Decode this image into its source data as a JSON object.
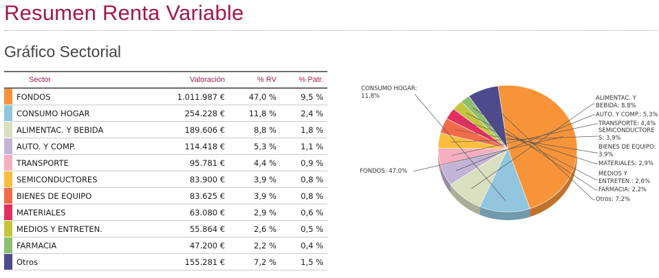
{
  "page": {
    "title": "Resumen Renta Variable",
    "section_title": "Gráfico Sectorial"
  },
  "table": {
    "headers": {
      "sector": "Sector",
      "valoracion": "Valoración",
      "pct_rv": "% RV",
      "pct_patr": "% Patr."
    },
    "rows": [
      {
        "sector": "FONDOS",
        "valoracion": "1.011.987 €",
        "pct_rv": "47,0 %",
        "pct_patr": "9,5 %",
        "color": "#f7943a"
      },
      {
        "sector": "CONSUMO HOGAR",
        "valoracion": "254.228 €",
        "pct_rv": "11,8 %",
        "pct_patr": "2,4 %",
        "color": "#92c5de"
      },
      {
        "sector": "ALIMENTAC. Y BEBIDA",
        "valoracion": "189.606 €",
        "pct_rv": "8,8 %",
        "pct_patr": "1,8 %",
        "color": "#dadfc0"
      },
      {
        "sector": "AUTO. Y COMP.",
        "valoracion": "114.418 €",
        "pct_rv": "5,3 %",
        "pct_patr": "1,1 %",
        "color": "#c2b4d6"
      },
      {
        "sector": "TRANSPORTE",
        "valoracion": "95.781 €",
        "pct_rv": "4,4 %",
        "pct_patr": "0,9 %",
        "color": "#f4afc0"
      },
      {
        "sector": "SEMICONDUCTORES",
        "valoracion": "83.900 €",
        "pct_rv": "3,9 %",
        "pct_patr": "0,8 %",
        "color": "#f9be3e"
      },
      {
        "sector": "BIENES DE EQUIPO",
        "valoracion": "83.625 €",
        "pct_rv": "3,9 %",
        "pct_patr": "0,8 %",
        "color": "#f26b4b"
      },
      {
        "sector": "MATERIALES",
        "valoracion": "63.080 €",
        "pct_rv": "2,9 %",
        "pct_patr": "0,6 %",
        "color": "#e2305e"
      },
      {
        "sector": "MEDIOS Y ENTRETEN.",
        "valoracion": "55.864 €",
        "pct_rv": "2,6 %",
        "pct_patr": "0,5 %",
        "color": "#c4c43e"
      },
      {
        "sector": "FARMACIA",
        "valoracion": "47.200 €",
        "pct_rv": "2,2 %",
        "pct_patr": "0,4 %",
        "color": "#8dbf72"
      },
      {
        "sector": "Otros",
        "valoracion": "155.281 €",
        "pct_rv": "7,2 %",
        "pct_patr": "1,5 %",
        "color": "#4d4a8e"
      }
    ]
  },
  "chart_data": {
    "type": "pie",
    "title": "",
    "categories": [
      "FONDOS",
      "CONSUMO HOGAR",
      "ALIMENTAC. Y BEBIDA",
      "AUTO. Y COMP.",
      "TRANSPORTE",
      "SEMICONDUCTORES",
      "BIENES DE EQUIPO",
      "MATERIALES",
      "MEDIOS Y ENTRETEN.",
      "FARMACIA",
      "Otros"
    ],
    "values": [
      47.0,
      11.8,
      8.8,
      5.3,
      4.4,
      3.9,
      3.9,
      2.9,
      2.6,
      2.2,
      7.2
    ],
    "colors": [
      "#f7943a",
      "#92c5de",
      "#dadfc0",
      "#c2b4d6",
      "#f4afc0",
      "#f9be3e",
      "#f26b4b",
      "#e2305e",
      "#c4c43e",
      "#8dbf72",
      "#4d4a8e"
    ],
    "labels": [
      [
        "FONDOS: 47,0%"
      ],
      [
        "CONSUMO HOGAR:",
        "11,8%"
      ],
      [
        "ALIMENTAC. Y",
        "BEBIDA: 8,8%"
      ],
      [
        "AUTO. Y COMP.: 5,3%"
      ],
      [
        "TRANSPORTE: 4,4%"
      ],
      [
        "SEMICONDUCTORE",
        "S: 3,9%"
      ],
      [
        "BIENES DE EQUIPO:",
        "3,9%"
      ],
      [
        "MATERIALES: 2,9%"
      ],
      [
        "MEDIOS Y",
        "ENTRETEN.: 2,6%"
      ],
      [
        "FARMACIA: 2,2%"
      ],
      [
        "Otros: 7,2%"
      ]
    ],
    "legend": "none",
    "style": "3d-pie"
  }
}
